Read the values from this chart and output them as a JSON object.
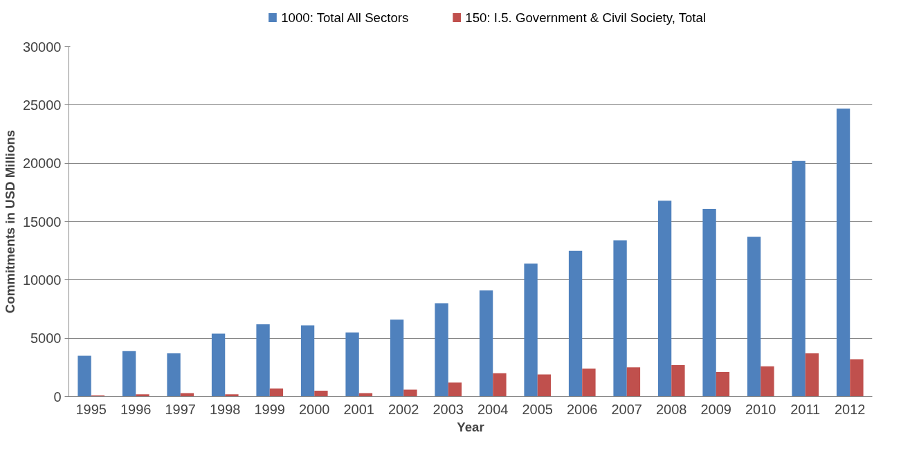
{
  "chart_data": {
    "type": "bar",
    "xlabel": "Year",
    "ylabel": "Commitments in USD Millions",
    "categories": [
      "1995",
      "1996",
      "1997",
      "1998",
      "1999",
      "2000",
      "2001",
      "2002",
      "2003",
      "2004",
      "2005",
      "2006",
      "2007",
      "2008",
      "2009",
      "2010",
      "2011",
      "2012"
    ],
    "series": [
      {
        "name": "1000: Total All Sectors",
        "color": "#4f81bd",
        "values": [
          3500,
          3900,
          3700,
          5400,
          6200,
          6100,
          5500,
          6600,
          8000,
          9100,
          11400,
          12500,
          13400,
          16800,
          16100,
          13700,
          20200,
          24700
        ]
      },
      {
        "name": "150: I.5. Government & Civil Society, Total",
        "color": "#c0504d",
        "values": [
          100,
          200,
          300,
          200,
          700,
          500,
          300,
          600,
          1200,
          2000,
          1900,
          2400,
          2500,
          2700,
          2100,
          2600,
          3700,
          3200
        ]
      }
    ],
    "ylim": [
      0,
      30000
    ],
    "yticks": [
      0,
      5000,
      10000,
      15000,
      20000,
      25000,
      30000
    ],
    "grid": "y",
    "legend": "top"
  }
}
